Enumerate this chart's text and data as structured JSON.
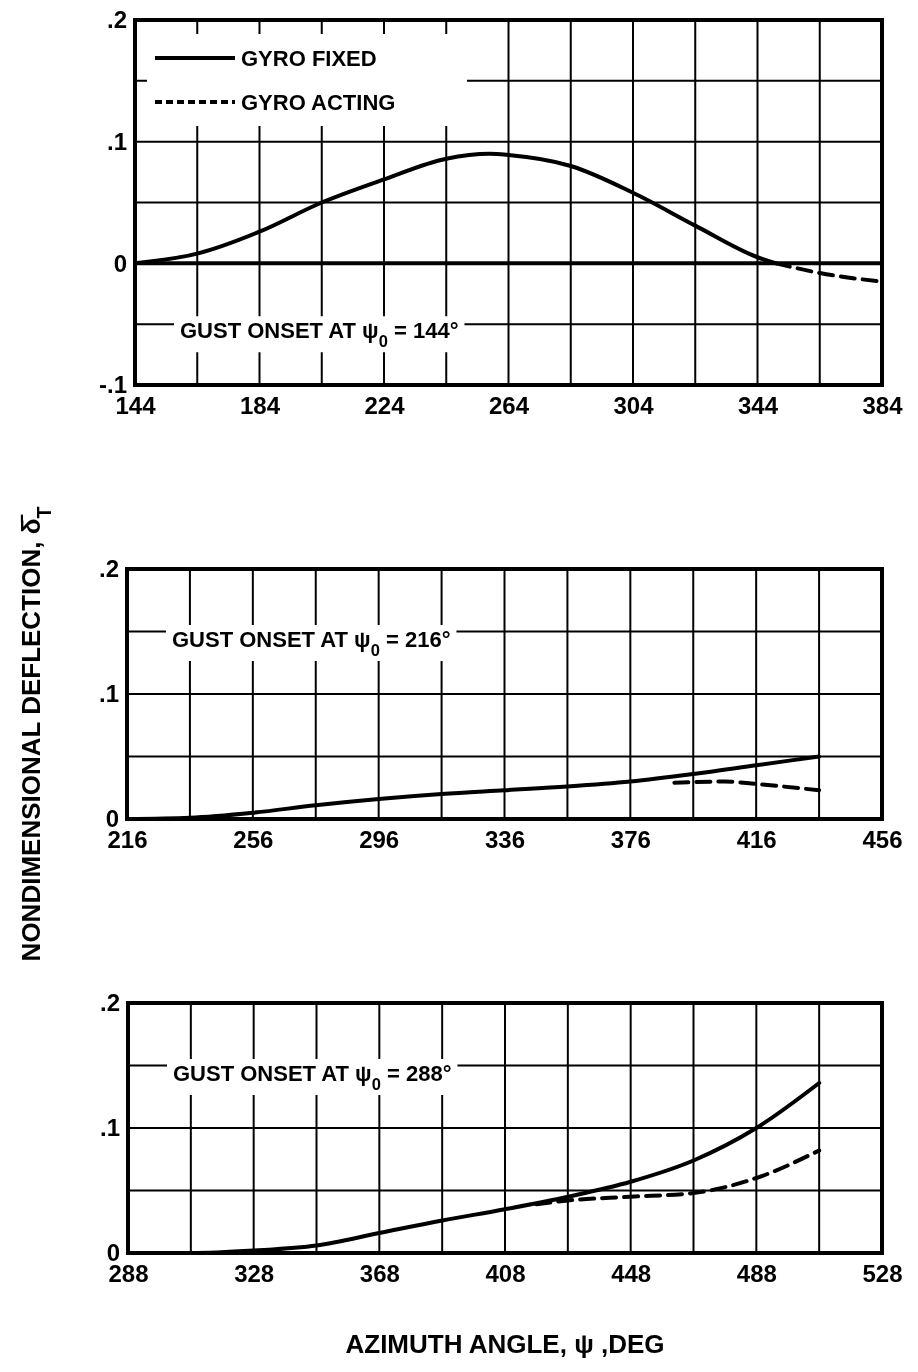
{
  "chart_data": [
    {
      "type": "line",
      "xlim": [
        144,
        384
      ],
      "ylim": [
        -0.1,
        0.2
      ],
      "xticks": [
        144,
        {
          "value": 164,
          "label": null
        },
        184,
        {
          "value": 204,
          "label": null
        },
        224,
        {
          "value": 244,
          "label": null
        },
        264,
        {
          "value": 284,
          "label": null
        },
        304,
        {
          "value": 324,
          "label": null
        },
        344,
        {
          "value": 364,
          "label": null
        },
        384
      ],
      "yticks": [
        {
          "value": -0.1,
          "label": "-.1"
        },
        {
          "value": -0.05,
          "label": null
        },
        {
          "value": 0,
          "label": "0"
        },
        {
          "value": 0.05,
          "label": null
        },
        {
          "value": 0.1,
          "label": ".1"
        },
        {
          "value": 0.15,
          "label": null
        },
        {
          "value": 0.2,
          "label": ".2"
        }
      ],
      "grid": true,
      "legend": "top left",
      "ref_lines": [
        {
          "axis": "y",
          "value": 0
        }
      ],
      "annotations": [
        "GUST ONSET AT ψ$_{0}$ = 144°"
      ],
      "series": [
        {
          "name": "GYRO FIXED",
          "color": "#000000",
          "line_style": "solid",
          "x": [
            144,
            164,
            184,
            204,
            224,
            244,
            258,
            264,
            284,
            304,
            324,
            344,
            350
          ],
          "values": [
            0,
            0.008,
            0.026,
            0.05,
            0.069,
            0.086,
            0.09,
            0.089,
            0.08,
            0.058,
            0.031,
            0.005,
            0
          ]
        },
        {
          "name": "GYRO ACTING",
          "color": "#000000",
          "line_style": "dashed",
          "x": [
            350,
            364,
            384
          ],
          "values": [
            0,
            -0.008,
            -0.015
          ]
        }
      ]
    },
    {
      "type": "line",
      "xlim": [
        216,
        456
      ],
      "ylim": [
        0,
        0.2
      ],
      "xticks": [
        216,
        {
          "value": 236,
          "label": null
        },
        256,
        {
          "value": 276,
          "label": null
        },
        296,
        {
          "value": 316,
          "label": null
        },
        336,
        {
          "value": 356,
          "label": null
        },
        376,
        {
          "value": 396,
          "label": null
        },
        416,
        {
          "value": 436,
          "label": null
        },
        456
      ],
      "yticks": [
        {
          "value": 0,
          "label": "0"
        },
        {
          "value": 0.05,
          "label": null
        },
        {
          "value": 0.1,
          "label": ".1"
        },
        {
          "value": 0.15,
          "label": null
        },
        {
          "value": 0.2,
          "label": ".2"
        }
      ],
      "grid": true,
      "ylabel": "NONDIMENSIONAL DEFLECTION, δ̄$_{T}$",
      "annotations": [
        "GUST ONSET AT ψ$_{0}$ = 216°"
      ],
      "series": [
        {
          "color": "#000000",
          "line_style": "solid",
          "x": [
            216,
            236,
            256,
            276,
            296,
            316,
            336,
            356,
            376,
            396,
            416,
            436
          ],
          "values": [
            0,
            0.001,
            0.005,
            0.011,
            0.016,
            0.02,
            0.023,
            0.026,
            0.03,
            0.036,
            0.043,
            0.05
          ]
        },
        {
          "color": "#000000",
          "line_style": "dashed",
          "x": [
            390,
            406,
            416,
            436
          ],
          "values": [
            0.029,
            0.03,
            0.028,
            0.023
          ]
        }
      ]
    },
    {
      "type": "line",
      "xlim": [
        288,
        528
      ],
      "ylim": [
        0,
        0.2
      ],
      "xticks": [
        288,
        {
          "value": 308,
          "label": null
        },
        328,
        {
          "value": 348,
          "label": null
        },
        368,
        {
          "value": 388,
          "label": null
        },
        408,
        {
          "value": 428,
          "label": null
        },
        448,
        {
          "value": 468,
          "label": null
        },
        488,
        {
          "value": 508,
          "label": null
        },
        528
      ],
      "yticks": [
        {
          "value": 0,
          "label": "0"
        },
        {
          "value": 0.05,
          "label": null
        },
        {
          "value": 0.1,
          "label": ".1"
        },
        {
          "value": 0.15,
          "label": null
        },
        {
          "value": 0.2,
          "label": ".2"
        }
      ],
      "grid": true,
      "xlabel": "AZIMUTH ANGLE, ψ ,DEG",
      "annotations": [
        "GUST ONSET AT ψ$_{0}$ = 288°"
      ],
      "series": [
        {
          "color": "#000000",
          "line_style": "solid",
          "x": [
            288,
            308,
            328,
            348,
            368,
            388,
            408,
            428,
            448,
            468,
            488,
            508
          ],
          "values": [
            0,
            0,
            0.002,
            0.006,
            0.016,
            0.026,
            0.035,
            0.045,
            0.057,
            0.074,
            0.1,
            0.136
          ]
        },
        {
          "color": "#000000",
          "line_style": "dashed",
          "x": [
            418,
            428,
            448,
            468,
            488,
            508
          ],
          "values": [
            0.039,
            0.042,
            0.045,
            0.048,
            0.06,
            0.082
          ]
        }
      ]
    }
  ]
}
